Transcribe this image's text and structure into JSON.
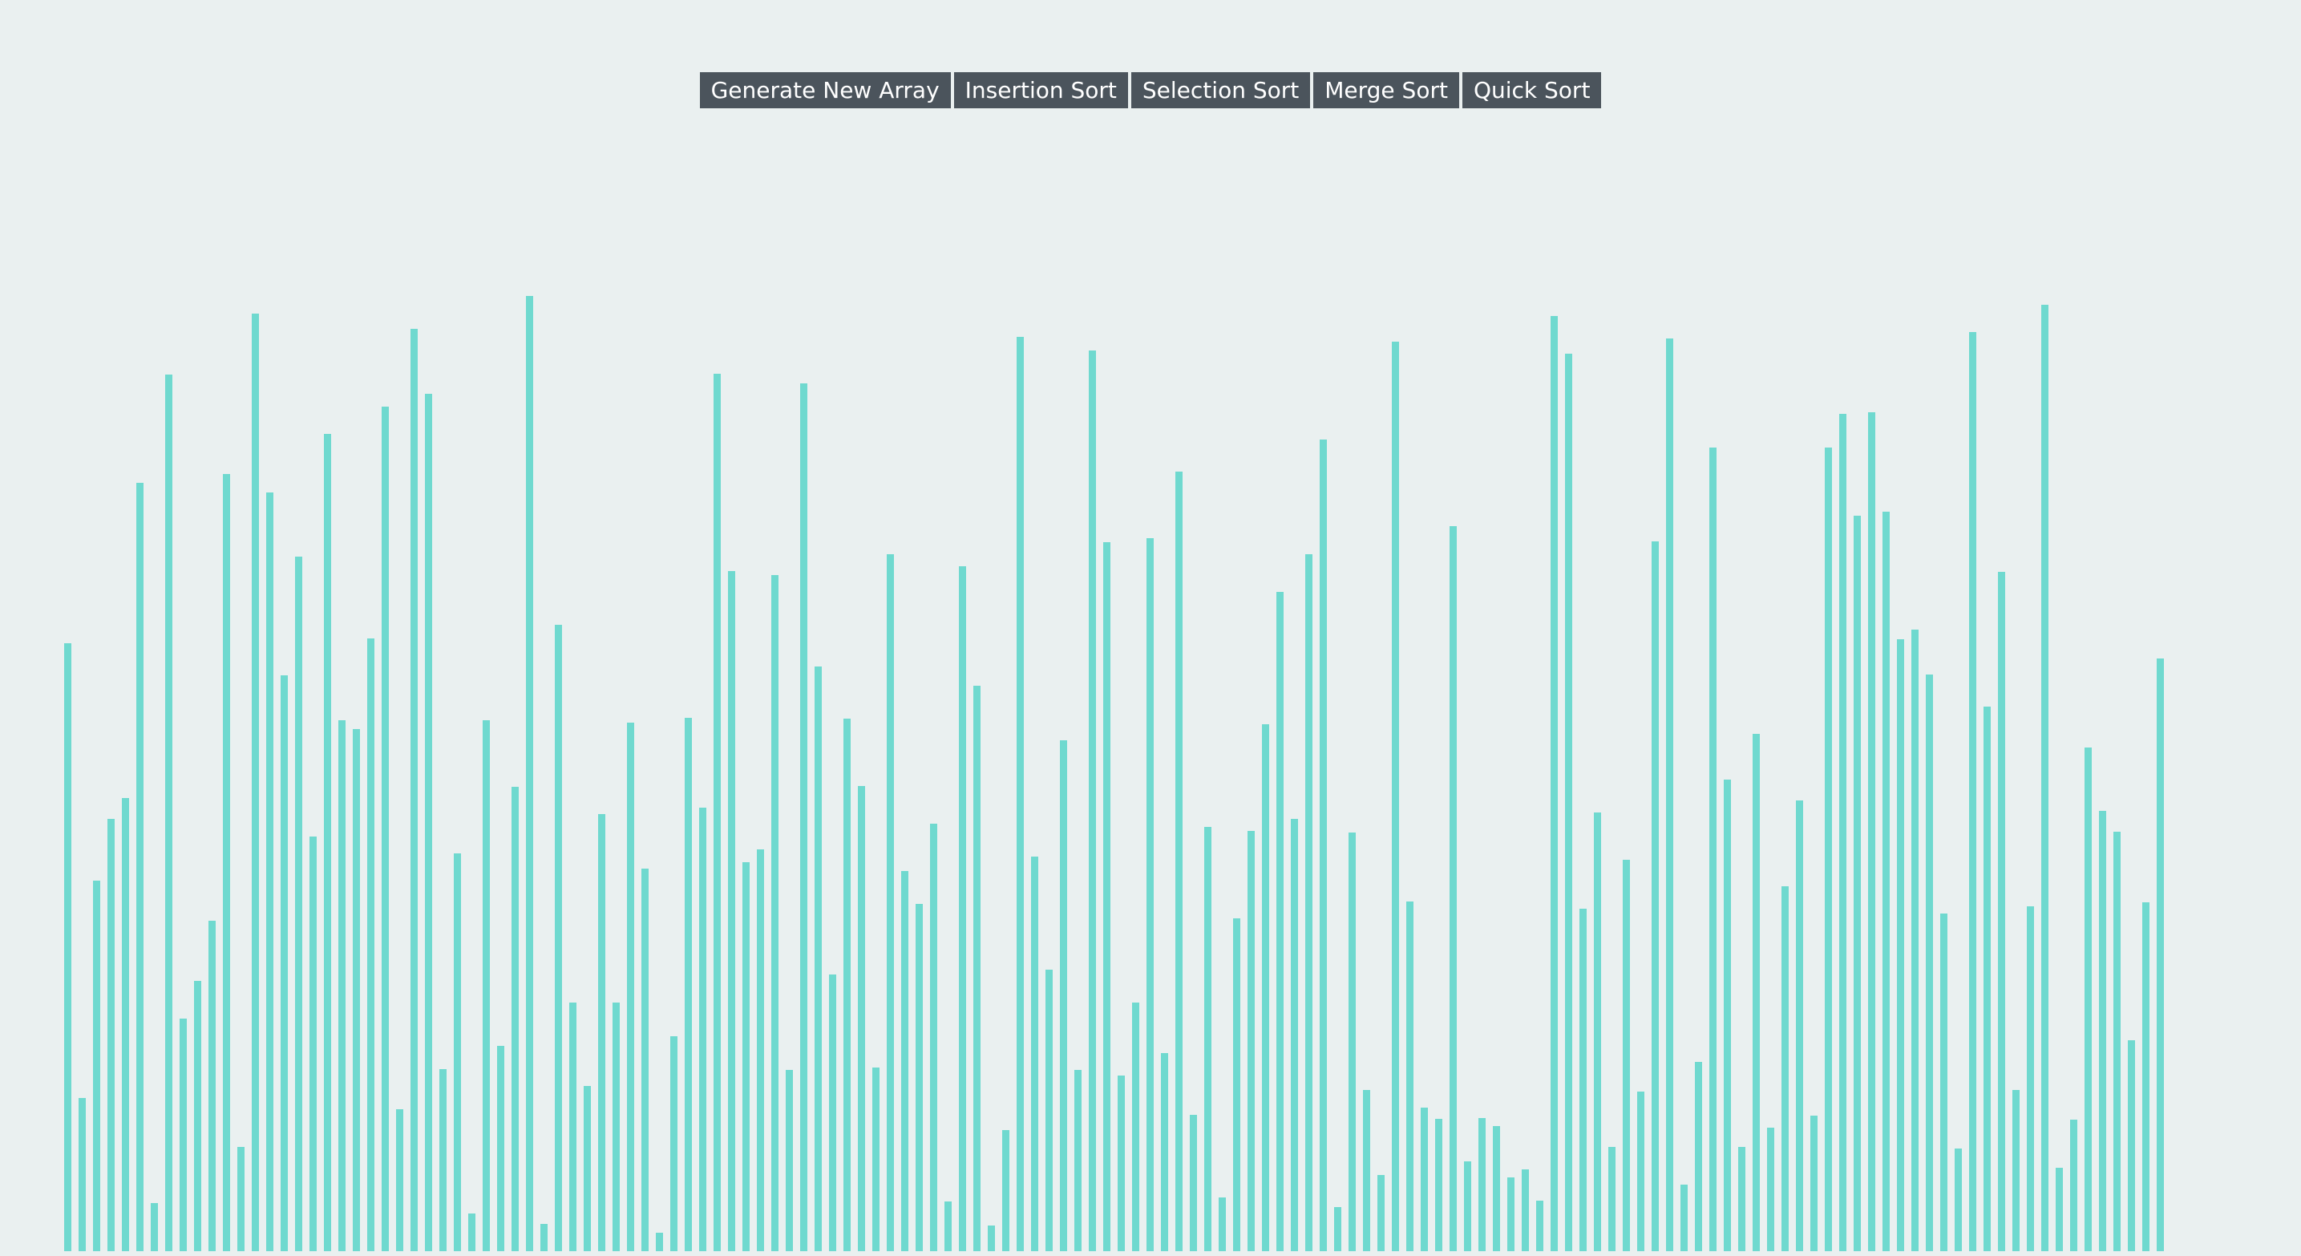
{
  "toolbar": {
    "buttons": [
      {
        "name": "generate-new-array-button",
        "label": "Generate New Array"
      },
      {
        "name": "insertion-sort-button",
        "label": "Insertion Sort"
      },
      {
        "name": "selection-sort-button",
        "label": "Selection Sort"
      },
      {
        "name": "merge-sort-button",
        "label": "Merge Sort"
      },
      {
        "name": "quick-sort-button",
        "label": "Quick Sort"
      }
    ]
  },
  "colors": {
    "background": "#eaf0f0",
    "button_bg": "#4b545c",
    "button_text": "#ffffff",
    "bar": "#6fd9cf"
  },
  "array": {
    "values": [
      758,
      191,
      462,
      539,
      565,
      958,
      60,
      1093,
      290,
      337,
      412,
      969,
      130,
      1169,
      946,
      718,
      866,
      517,
      1019,
      662,
      651,
      764,
      1053,
      177,
      1150,
      1069,
      227,
      496,
      47,
      662,
      256,
      579,
      1191,
      34,
      781,
      310,
      206,
      545,
      310,
      659,
      477,
      23,
      268,
      665,
      553,
      1094,
      848,
      485,
      501,
      843,
      226,
      1082,
      729,
      345,
      664,
      580,
      229,
      869,
      474,
      433,
      533,
      62,
      854,
      705,
      32,
      151,
      1140,
      492,
      351,
      637,
      226,
      1123,
      884,
      219,
      310,
      889,
      247,
      972,
      170,
      529,
      67,
      415,
      524,
      657,
      822,
      539,
      869,
      1012,
      55,
      522,
      201,
      95,
      1134,
      436,
      179,
      165,
      904,
      112,
      166,
      156,
      92,
      102,
      63,
      1166,
      1119,
      427,
      547,
      130,
      488,
      199,
      885,
      1138,
      83,
      236,
      1002,
      588,
      130,
      645,
      154,
      455,
      562,
      169,
      1002,
      1044,
      917,
      1046,
      922,
      763,
      775,
      719,
      421,
      128,
      1146,
      679,
      847,
      201,
      430,
      1180,
      104,
      164,
      628,
      549,
      523,
      263,
      435,
      739
    ]
  }
}
